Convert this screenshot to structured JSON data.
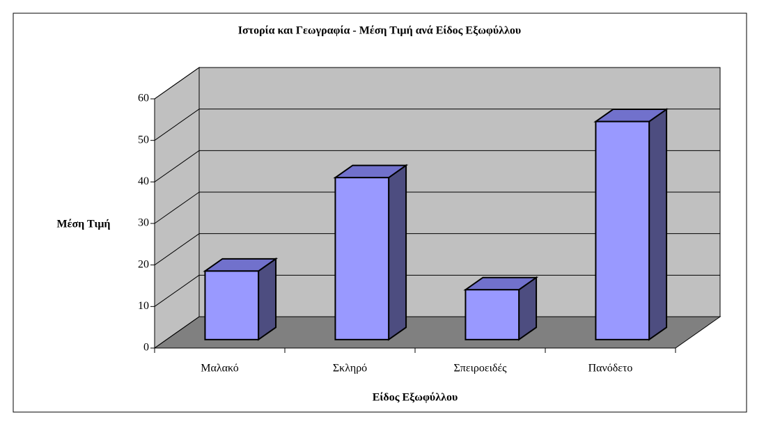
{
  "chart_data": {
    "type": "bar",
    "title": "Ιστορία και Γεωγραφία - Μέση Τιμή ανά Είδος Εξωφύλλου",
    "x_label": "Είδος Εξωφύλλου",
    "y_label": "Μέση Τιμή",
    "categories": [
      "Μαλακό",
      "Σκληρό",
      "Σπειροειδές",
      "Πανόδετο"
    ],
    "values": [
      16.5,
      39,
      12,
      52.5
    ],
    "color": "#9999ff",
    "ylim": [
      0,
      60
    ],
    "yticks": [
      0,
      10,
      20,
      30,
      40,
      50,
      60
    ],
    "grid": true
  }
}
